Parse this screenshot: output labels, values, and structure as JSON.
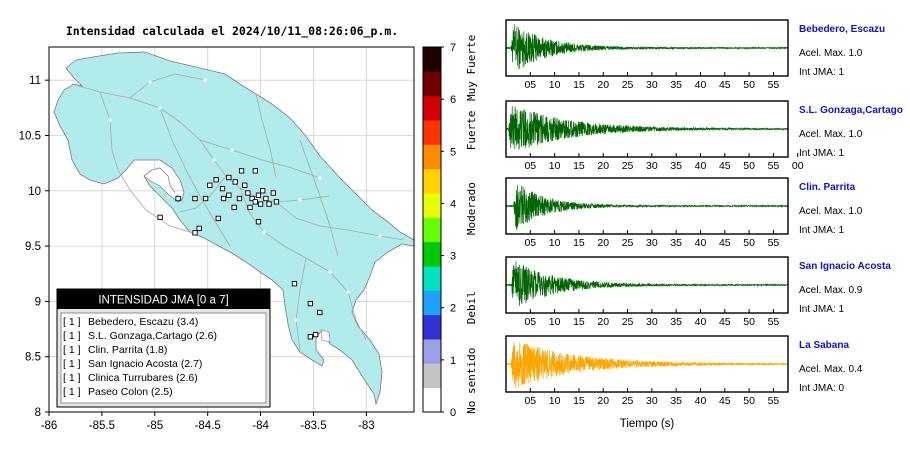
{
  "map": {
    "title": "Intensidad calculada el 2024/10/11_08:26:06_p.m.",
    "xlim": [
      -86,
      -82.55
    ],
    "ylim": [
      8,
      11.3
    ],
    "x_ticks": [
      "-86",
      "-85.5",
      "-85",
      "-84.5",
      "-84",
      "-83.5",
      "-83"
    ],
    "y_ticks": [
      "8",
      "8.5",
      "9",
      "9.5",
      "10",
      "10.5",
      "11"
    ],
    "land_color": "#b2ebeb",
    "station_markers": [
      {
        "lon": -84.48,
        "lat": 10.05
      },
      {
        "lon": -84.42,
        "lat": 10.1
      },
      {
        "lon": -84.36,
        "lat": 10.02
      },
      {
        "lon": -84.3,
        "lat": 9.96
      },
      {
        "lon": -84.24,
        "lat": 10.08
      },
      {
        "lon": -84.2,
        "lat": 9.93
      },
      {
        "lon": -84.15,
        "lat": 10.05
      },
      {
        "lon": -84.12,
        "lat": 9.98
      },
      {
        "lon": -84.08,
        "lat": 9.93
      },
      {
        "lon": -84.05,
        "lat": 9.9
      },
      {
        "lon": -84.02,
        "lat": 9.96
      },
      {
        "lon": -84.0,
        "lat": 9.88
      },
      {
        "lon": -83.98,
        "lat": 10.0
      },
      {
        "lon": -83.95,
        "lat": 9.93
      },
      {
        "lon": -83.92,
        "lat": 9.88
      },
      {
        "lon": -83.88,
        "lat": 9.98
      },
      {
        "lon": -83.85,
        "lat": 9.9
      },
      {
        "lon": -84.1,
        "lat": 9.85
      },
      {
        "lon": -84.25,
        "lat": 9.85
      },
      {
        "lon": -84.35,
        "lat": 9.93
      },
      {
        "lon": -84.52,
        "lat": 9.93
      },
      {
        "lon": -84.62,
        "lat": 9.93
      },
      {
        "lon": -84.05,
        "lat": 10.18
      },
      {
        "lon": -84.18,
        "lat": 10.18
      },
      {
        "lon": -84.3,
        "lat": 10.12
      },
      {
        "lon": -84.4,
        "lat": 9.75
      },
      {
        "lon": -84.58,
        "lat": 9.66
      },
      {
        "lon": -84.78,
        "lat": 9.93
      },
      {
        "lon": -84.95,
        "lat": 9.76
      },
      {
        "lon": -84.62,
        "lat": 9.62
      },
      {
        "lon": -84.02,
        "lat": 9.72
      },
      {
        "lon": -83.68,
        "lat": 9.16
      },
      {
        "lon": -83.53,
        "lat": 8.98
      },
      {
        "lon": -83.44,
        "lat": 8.9
      },
      {
        "lon": -83.48,
        "lat": 8.7
      },
      {
        "lon": -83.53,
        "lat": 8.68
      }
    ],
    "legend": {
      "title": "INTENSIDAD JMA [0 a 7]",
      "rows": [
        {
          "int": "[ 1 ]",
          "station": "Bebedero, Escazu (3.4)"
        },
        {
          "int": "[ 1 ]",
          "station": "S.L. Gonzaga,Cartago (2.6)"
        },
        {
          "int": "[ 1 ]",
          "station": "Clin. Parrita (1.8)"
        },
        {
          "int": "[ 1 ]",
          "station": "San Ignacio Acosta (2.7)"
        },
        {
          "int": "[ 1 ]",
          "station": "Clinica Turrubares (2.6)"
        },
        {
          "int": "[ 1 ]",
          "station": "Paseo Colon (2.5)"
        }
      ]
    }
  },
  "colorbar": {
    "ticks": [
      "0",
      "1",
      "2",
      "3",
      "4",
      "5",
      "6",
      "7"
    ],
    "labels": [
      {
        "text": "No sentido",
        "at": 0.6
      },
      {
        "text": "Debil",
        "at": 2.0
      },
      {
        "text": "Moderado",
        "at": 3.9
      },
      {
        "text": "Fuerte",
        "at": 5.4
      },
      {
        "text": "Muy Fuerte",
        "at": 6.6
      }
    ],
    "colors": [
      "#ffffff",
      "#c4c4c4",
      "#a0a0e8",
      "#3232d8",
      "#1da0ff",
      "#00e0c0",
      "#00c800",
      "#64ff00",
      "#e6ff00",
      "#ffd200",
      "#ff8c00",
      "#ff3200",
      "#d20000",
      "#6e0000",
      "#1e0000"
    ]
  },
  "chart_data": {
    "type": "line",
    "xlabel": "Tiempo (s)",
    "xlim": [
      0,
      58
    ],
    "x_ticks": [
      "05",
      "10",
      "15",
      "20",
      "25",
      "30",
      "35",
      "40",
      "45",
      "50",
      "55"
    ],
    "x_ticks_alt": [
      "05",
      "10",
      "15",
      "20",
      "25",
      "30",
      "35",
      "40",
      "45",
      "50",
      "55",
      "00"
    ],
    "series": [
      {
        "name": "Bebedero, Escazu",
        "acel": "Acel. Max. 1.0",
        "int": "Int JMA: 1",
        "color": "#006400",
        "onset": 1.0,
        "decay": 7,
        "alt_ticks": false
      },
      {
        "name": "S.L. Gonzaga,Cartago",
        "acel": "Acel. Max. 1.0",
        "int": "Int JMA: 1",
        "color": "#006400",
        "onset": 0.5,
        "decay": 11,
        "alt_ticks": true
      },
      {
        "name": "Clin. Parrita",
        "acel": "Acel. Max. 1.0",
        "int": "Int JMA: 1",
        "color": "#006400",
        "onset": 1.5,
        "decay": 6,
        "alt_ticks": false
      },
      {
        "name": "San Ignacio Acosta",
        "acel": "Acel. Max. 0.9",
        "int": "Int JMA: 1",
        "color": "#006400",
        "onset": 1.0,
        "decay": 8,
        "alt_ticks": false
      },
      {
        "name": "La Sabana",
        "acel": "Acel. Max. 0.4",
        "int": "Int JMA: 0",
        "color": "#ffa500",
        "onset": 1.0,
        "decay": 12,
        "alt_ticks": false
      }
    ]
  }
}
